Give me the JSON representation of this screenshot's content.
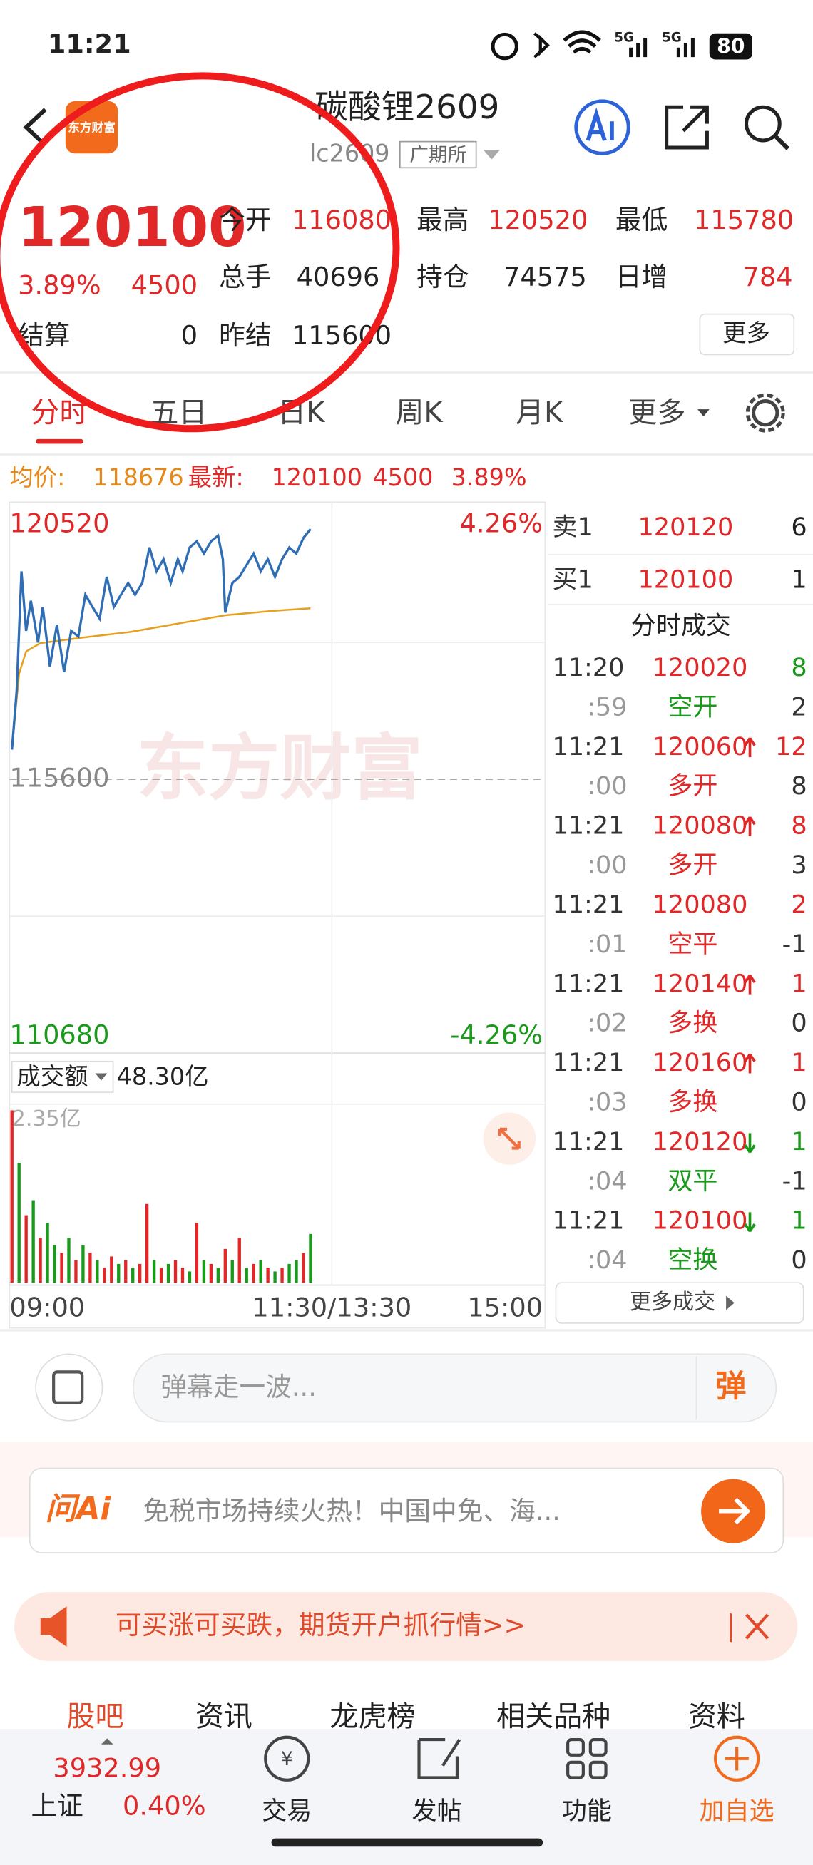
{
  "status": {
    "time": "11:21",
    "signal": [
      "5G",
      "5G"
    ],
    "battery": "80"
  },
  "header": {
    "logo": "东方财富",
    "title": "碳酸锂2609",
    "code": "lc2609",
    "exchange": "广期所"
  },
  "quote": {
    "price": 120100,
    "change_pct": "3.89%",
    "change": 4500,
    "settle_label": "结算",
    "settle": 0,
    "fields": [
      {
        "label": "今开",
        "value": 116080
      },
      {
        "label": "最高",
        "value": 120520
      },
      {
        "label": "最低",
        "value": 115780
      },
      {
        "label": "总手",
        "value": 40696
      },
      {
        "label": "持仓",
        "value": 74575
      },
      {
        "label": "日增",
        "value": 784
      },
      {
        "label": "昨结",
        "value": 115600
      }
    ],
    "more": "更多"
  },
  "tabs": [
    "分时",
    "五日",
    "日K",
    "周K",
    "月K",
    "更多"
  ],
  "info": {
    "avg_label": "均价:",
    "avg": 118676,
    "last_label": "最新:",
    "last": 120100,
    "change": 4500,
    "change_pct": "3.89%"
  },
  "intraday": {
    "ylim": [
      110680,
      120520
    ],
    "ref": 115600,
    "top_pct": "4.26%",
    "bottom_pct": "-4.26%",
    "xlim": [
      0,
      225
    ],
    "xticks": [
      {
        "value": 0,
        "label": "09:00"
      },
      {
        "value": 135,
        "label": "11:30/13:30"
      },
      {
        "value": 225,
        "label": "15:00"
      }
    ],
    "price_color": "#2f6db5",
    "avg_color": "#e6a020",
    "minutes": [
      0,
      2,
      4,
      6,
      8,
      11,
      13,
      16,
      19,
      22,
      25,
      28,
      31,
      34,
      37,
      40,
      43,
      46,
      49,
      52,
      55,
      58,
      61,
      64,
      67,
      70,
      72,
      75,
      78,
      81,
      84,
      87,
      89,
      90,
      93,
      96,
      99,
      102,
      105,
      108,
      111,
      114,
      117,
      120,
      123,
      126
    ],
    "price": [
      116135,
      117200,
      119340,
      118270,
      118810,
      118060,
      118700,
      117630,
      118380,
      117530,
      118270,
      118170,
      118920,
      118700,
      118490,
      119240,
      118700,
      118920,
      119130,
      118920,
      119130,
      119770,
      119340,
      119560,
      119130,
      119560,
      119340,
      119770,
      119880,
      119660,
      119880,
      119980,
      119560,
      118600,
      119130,
      119240,
      119450,
      119660,
      119340,
      119560,
      119240,
      119560,
      119770,
      119660,
      119940,
      120100
    ],
    "avg_minutes": [
      0,
      3,
      6,
      12,
      30,
      50,
      70,
      90,
      110,
      126
    ],
    "avg": [
      116135,
      117500,
      117900,
      118050,
      118150,
      118250,
      118400,
      118550,
      118630,
      118676
    ]
  },
  "volume": {
    "label": "成交额",
    "total": "48.30亿",
    "ylim": [
      0,
      2.35
    ],
    "yticks": [
      {
        "value": 2.35,
        "label": "2.35亿"
      }
    ],
    "minutes": [
      0,
      3,
      6,
      9,
      12,
      15,
      18,
      21,
      24,
      27,
      30,
      33,
      36,
      39,
      42,
      45,
      48,
      51,
      54,
      57,
      60,
      63,
      66,
      69,
      72,
      75,
      78,
      81,
      84,
      87,
      90,
      93,
      96,
      99,
      102,
      105,
      108,
      111,
      114,
      117,
      120,
      123,
      126
    ],
    "values": [
      2.3,
      1.6,
      0.9,
      1.1,
      0.6,
      0.8,
      0.5,
      0.4,
      0.6,
      0.3,
      0.5,
      0.4,
      0.3,
      0.2,
      0.35,
      0.25,
      0.3,
      0.2,
      0.25,
      1.05,
      0.3,
      0.2,
      0.25,
      0.3,
      0.2,
      0.15,
      0.8,
      0.3,
      0.25,
      0.2,
      0.45,
      0.3,
      0.6,
      0.2,
      0.25,
      0.3,
      0.2,
      0.15,
      0.2,
      0.25,
      0.3,
      0.4,
      0.65
    ],
    "colors": [
      "#e02828",
      "#1a9a1a",
      "#e02828",
      "#1a9a1a",
      "#e02828",
      "#1a9a1a",
      "#1a9a1a",
      "#e02828",
      "#1a9a1a",
      "#e02828",
      "#1a9a1a",
      "#e02828",
      "#1a9a1a",
      "#e02828",
      "#e02828",
      "#1a9a1a",
      "#e02828",
      "#1a9a1a",
      "#e02828",
      "#e02828",
      "#1a9a1a",
      "#e02828",
      "#1a9a1a",
      "#e02828",
      "#e02828",
      "#1a9a1a",
      "#e02828",
      "#1a9a1a",
      "#e02828",
      "#1a9a1a",
      "#e02828",
      "#1a9a1a",
      "#e02828",
      "#1a9a1a",
      "#e02828",
      "#1a9a1a",
      "#e02828",
      "#1a9a1a",
      "#e02828",
      "#1a9a1a",
      "#1a9a1a",
      "#e02828",
      "#1a9a1a"
    ]
  },
  "book": [
    {
      "label": "卖1",
      "price": 120120,
      "volume": 6
    },
    {
      "label": "买1",
      "price": 120100,
      "volume": 1
    }
  ],
  "trades": {
    "title": "分时成交",
    "more": "更多成交",
    "rows": [
      {
        "time": "11:20",
        "price": 120020,
        "volume": 8,
        "seconds": ":59",
        "kind": "空开",
        "change": 2,
        "color": "#1a9a1a"
      },
      {
        "time": "11:21",
        "price": 120060,
        "dir": "up",
        "volume": 12,
        "seconds": ":00",
        "kind": "多开",
        "change": 8,
        "color": "#e02828"
      },
      {
        "time": "11:21",
        "price": 120080,
        "dir": "up",
        "volume": 8,
        "seconds": ":00",
        "kind": "多开",
        "change": 3,
        "color": "#e02828"
      },
      {
        "time": "11:21",
        "price": 120080,
        "volume": 2,
        "seconds": ":01",
        "kind": "空平",
        "change": -1,
        "color": "#e02828"
      },
      {
        "time": "11:21",
        "price": 120140,
        "dir": "up",
        "volume": 1,
        "seconds": ":02",
        "kind": "多换",
        "change": 0,
        "color": "#e02828"
      },
      {
        "time": "11:21",
        "price": 120160,
        "dir": "up",
        "volume": 1,
        "seconds": ":03",
        "kind": "多换",
        "change": 0,
        "color": "#e02828"
      },
      {
        "time": "11:21",
        "price": 120120,
        "dir": "down",
        "volume": 1,
        "seconds": ":04",
        "kind": "双平",
        "change": -1,
        "color": "#1a9a1a"
      },
      {
        "time": "11:21",
        "price": 120100,
        "dir": "down",
        "volume": 1,
        "seconds": ":04",
        "kind": "空换",
        "change": 0,
        "color": "#1a9a1a"
      }
    ]
  },
  "watermark": "东方财富",
  "danmaku": {
    "placeholder": "弹幕走一波...",
    "button": "弹"
  },
  "ai": {
    "brand": "问Ai",
    "text": "免税市场持续火热！中国中免、海..."
  },
  "ad": {
    "text": "可买涨可买跌，期货开户抓行情>>"
  },
  "bottom_tabs": [
    "股吧",
    "资讯",
    "龙虎榜",
    "相关品种",
    "资料"
  ],
  "nav": {
    "index_value": 3932.99,
    "index_name": "上证",
    "index_pct": "0.40%",
    "items": [
      "交易",
      "发帖",
      "功能",
      "加自选"
    ]
  }
}
